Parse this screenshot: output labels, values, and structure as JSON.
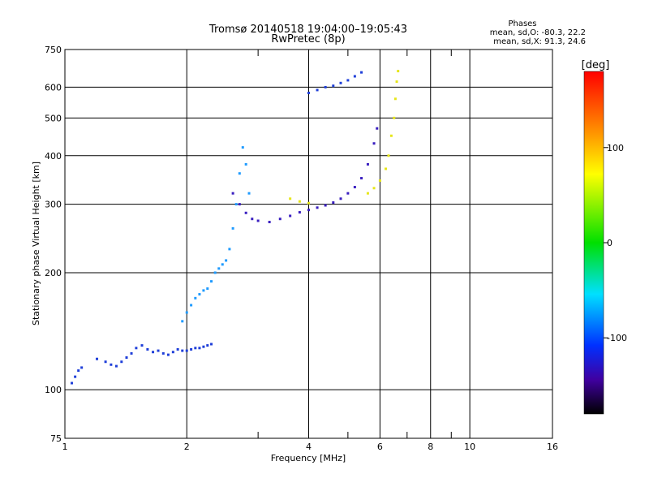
{
  "chart_data": {
    "type": "scatter",
    "title": "Tromsø 20140518 19:04:00–19:05:43",
    "subtitle": "RwPretec (8p)",
    "xlabel": "Frequency [MHz]",
    "ylabel": "Stationary phase Virtual Height [km]",
    "xscale": "log",
    "yscale": "log",
    "xlim": [
      1,
      16
    ],
    "ylim": [
      75,
      750
    ],
    "xticks": [
      1,
      2,
      4,
      6,
      8,
      10,
      16
    ],
    "xtick_labels": [
      "1",
      "2",
      "4",
      "6",
      "8",
      "10",
      "16"
    ],
    "x_minor_ticks": [
      3,
      5,
      7,
      9
    ],
    "yticks": [
      75,
      100,
      200,
      300,
      400,
      500,
      600,
      750
    ],
    "ytick_labels": [
      "75",
      "100",
      "200",
      "300",
      "400",
      "500",
      "600",
      "750"
    ],
    "grid": true,
    "stats": {
      "heading": "Phases",
      "line_o": "mean, sd,O: -80.3, 22.2",
      "line_x": "mean, sd,X:  91.3, 24.6"
    },
    "colorbar": {
      "label": "[deg]",
      "range": [
        -180,
        180
      ],
      "ticks": [
        100,
        0,
        -100
      ],
      "tick_labels": [
        "100",
        "0",
        "-100"
      ]
    },
    "colors": {
      "grid": "#000000",
      "background": "#ffffff"
    },
    "series": [
      {
        "trace": "lower-layer-O",
        "color": "#1f3fd9",
        "points": [
          [
            1.04,
            104
          ],
          [
            1.06,
            108
          ],
          [
            1.08,
            112
          ],
          [
            1.1,
            114
          ],
          [
            1.2,
            120
          ],
          [
            1.26,
            118
          ],
          [
            1.3,
            116
          ],
          [
            1.34,
            115
          ],
          [
            1.38,
            118
          ],
          [
            1.42,
            121
          ],
          [
            1.46,
            124
          ],
          [
            1.5,
            128
          ],
          [
            1.55,
            130
          ],
          [
            1.6,
            127
          ],
          [
            1.65,
            125
          ],
          [
            1.7,
            126
          ],
          [
            1.75,
            124
          ],
          [
            1.8,
            123
          ],
          [
            1.85,
            125
          ],
          [
            1.9,
            127
          ],
          [
            1.95,
            126
          ],
          [
            2.0,
            126
          ],
          [
            2.05,
            127
          ],
          [
            2.1,
            128
          ],
          [
            2.15,
            128
          ],
          [
            2.2,
            129
          ],
          [
            2.25,
            130
          ],
          [
            2.3,
            131
          ]
        ]
      },
      {
        "trace": "f1-cusp-O",
        "color": "#1f9bff",
        "points": [
          [
            1.95,
            150
          ],
          [
            2.0,
            158
          ],
          [
            2.05,
            165
          ],
          [
            2.1,
            172
          ],
          [
            2.15,
            176
          ],
          [
            2.2,
            180
          ],
          [
            2.25,
            182
          ],
          [
            2.3,
            190
          ],
          [
            2.35,
            200
          ],
          [
            2.4,
            205
          ],
          [
            2.45,
            210
          ],
          [
            2.5,
            215
          ],
          [
            2.55,
            230
          ],
          [
            2.6,
            260
          ],
          [
            2.65,
            300
          ],
          [
            2.7,
            360
          ],
          [
            2.75,
            420
          ],
          [
            2.8,
            380
          ],
          [
            2.85,
            320
          ]
        ]
      },
      {
        "trace": "f2-layer-O",
        "color": "#3a1fc0",
        "points": [
          [
            2.6,
            320
          ],
          [
            2.7,
            300
          ],
          [
            2.8,
            285
          ],
          [
            2.9,
            275
          ],
          [
            3.0,
            272
          ],
          [
            3.2,
            270
          ],
          [
            3.4,
            275
          ],
          [
            3.6,
            280
          ],
          [
            3.8,
            286
          ],
          [
            4.0,
            290
          ],
          [
            4.2,
            294
          ],
          [
            4.4,
            298
          ],
          [
            4.6,
            303
          ],
          [
            4.8,
            310
          ],
          [
            5.0,
            320
          ],
          [
            5.2,
            332
          ],
          [
            5.4,
            350
          ],
          [
            5.6,
            380
          ],
          [
            5.8,
            430
          ],
          [
            5.9,
            470
          ]
        ]
      },
      {
        "trace": "upper-branch-O",
        "color": "#1f3fd9",
        "points": [
          [
            4.0,
            580
          ],
          [
            4.2,
            590
          ],
          [
            4.4,
            600
          ],
          [
            4.6,
            605
          ],
          [
            4.8,
            615
          ],
          [
            5.0,
            625
          ],
          [
            5.2,
            640
          ],
          [
            5.4,
            655
          ]
        ]
      },
      {
        "trace": "f2-layer-X",
        "color": "#e6e61a",
        "points": [
          [
            3.6,
            310
          ],
          [
            3.8,
            305
          ],
          [
            4.0,
            302
          ],
          [
            5.6,
            320
          ],
          [
            5.8,
            330
          ],
          [
            6.0,
            345
          ],
          [
            6.2,
            370
          ],
          [
            6.3,
            400
          ],
          [
            6.4,
            450
          ],
          [
            6.5,
            500
          ],
          [
            6.55,
            560
          ],
          [
            6.6,
            620
          ],
          [
            6.65,
            660
          ]
        ]
      }
    ]
  }
}
